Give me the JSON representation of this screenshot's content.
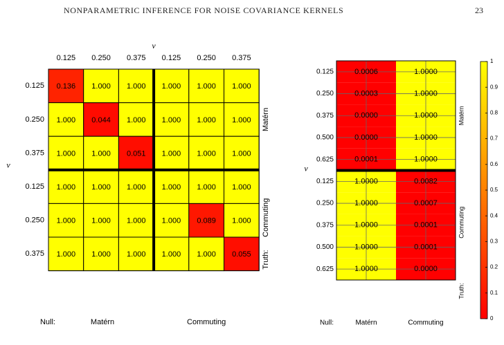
{
  "page": {
    "header_title": "NONPARAMETRIC INFERENCE FOR NOISE COVARIANCE KERNELS",
    "page_number": "23"
  },
  "colors": {
    "low": "#ff0000",
    "high": "#ffff00",
    "mid": "#ff8000"
  },
  "chart_data": [
    {
      "type": "heatmap",
      "axis_symbol": "ν",
      "col_labels": [
        "0.125",
        "0.250",
        "0.375",
        "0.125",
        "0.250",
        "0.375"
      ],
      "row_labels": [
        "0.125",
        "0.250",
        "0.375",
        "0.125",
        "0.250",
        "0.375"
      ],
      "null_label": "Null:",
      "truth_label": "Truth:",
      "col_groups": [
        "Matérn",
        "Commuting"
      ],
      "row_groups": [
        "Matérn",
        "Commuting"
      ],
      "values": [
        [
          "0.136",
          "1.000",
          "1.000",
          "1.000",
          "1.000",
          "1.000"
        ],
        [
          "1.000",
          "0.044",
          "1.000",
          "1.000",
          "1.000",
          "1.000"
        ],
        [
          "1.000",
          "1.000",
          "0.051",
          "1.000",
          "1.000",
          "1.000"
        ],
        [
          "1.000",
          "1.000",
          "1.000",
          "1.000",
          "1.000",
          "1.000"
        ],
        [
          "1.000",
          "1.000",
          "1.000",
          "1.000",
          "0.089",
          "1.000"
        ],
        [
          "1.000",
          "1.000",
          "1.000",
          "1.000",
          "1.000",
          "0.055"
        ]
      ],
      "color_scale": [
        0,
        1
      ]
    },
    {
      "type": "heatmap",
      "axis_symbol": "ν",
      "row_labels": [
        "0.125",
        "0.250",
        "0.375",
        "0.500",
        "0.625",
        "0.125",
        "0.250",
        "0.375",
        "0.500",
        "0.625"
      ],
      "col_groups": [
        "Matérn",
        "Commuting"
      ],
      "row_groups": [
        "Matérn",
        "Commuting"
      ],
      "null_label": "Null:",
      "truth_label": "Truth:",
      "values": [
        [
          "0.0006",
          "1.0000"
        ],
        [
          "0.0003",
          "1.0000"
        ],
        [
          "0.0000",
          "1.0000"
        ],
        [
          "0.0000",
          "1.0000"
        ],
        [
          "0.0001",
          "1.0000"
        ],
        [
          "1.0000",
          "0.0082"
        ],
        [
          "1.0000",
          "0.0007"
        ],
        [
          "1.0000",
          "0.0001"
        ],
        [
          "1.0000",
          "0.0001"
        ],
        [
          "1.0000",
          "0.0000"
        ]
      ],
      "color_scale": [
        0,
        1
      ],
      "colorbar_ticks": [
        "0",
        "0.1",
        "0.2",
        "0.3",
        "0.4",
        "0.5",
        "0.6",
        "0.7",
        "0.8",
        "0.9",
        "1"
      ]
    }
  ]
}
